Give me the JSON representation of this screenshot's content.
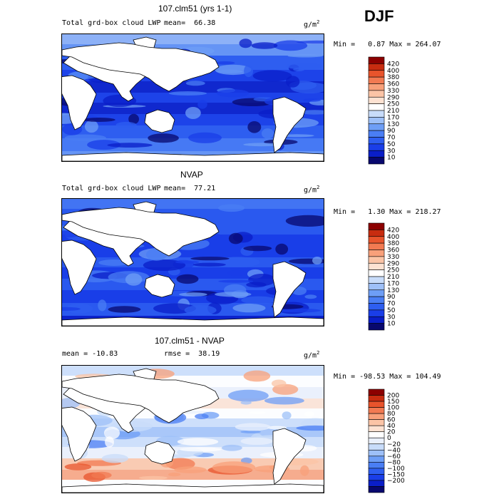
{
  "season": "DJF",
  "colors": {
    "abs_scale": [
      "#08086e",
      "#0a1ec8",
      "#1a3ee8",
      "#2e5ef0",
      "#4a7ef4",
      "#6e9ef6",
      "#9ec0f8",
      "#c8dcfa",
      "#ffffff",
      "#fde2d2",
      "#fbc4a6",
      "#f8a07a",
      "#f27a52",
      "#e8542c",
      "#c82c10",
      "#8c0000"
    ],
    "diff_scale": [
      "#08086e",
      "#0a1ec8",
      "#1a3ee8",
      "#2e5ef0",
      "#4a7ef4",
      "#6e9ef6",
      "#9ec0f8",
      "#c8dcfa",
      "#eaf0fc",
      "#ffffff",
      "#fde2d2",
      "#fbc4a6",
      "#f8a07a",
      "#f27a52",
      "#e8542c",
      "#c82c10",
      "#8c0000"
    ],
    "land": "#ffffff",
    "coast": "#000000"
  },
  "chart_data": [
    {
      "type": "heatmap",
      "title": "107.clm51 (yrs 1-1)",
      "subtitle": "Total grd-box cloud LWP",
      "stat_label": "mean=",
      "stat_value": "66.38",
      "unit_base": "g/m",
      "unit_exp": "2",
      "min_label": "Min =",
      "min_value": "0.87",
      "max_label": "Max =",
      "max_value": "264.07",
      "colorbar_levels": [
        "10",
        "30",
        "50",
        "70",
        "90",
        "130",
        "170",
        "210",
        "250",
        "290",
        "330",
        "360",
        "380",
        "400",
        "420"
      ]
    },
    {
      "type": "heatmap",
      "title": "NVAP",
      "subtitle": "Total grd-box cloud LWP",
      "stat_label": "mean=",
      "stat_value": "77.21",
      "unit_base": "g/m",
      "unit_exp": "2",
      "min_label": "Min =",
      "min_value": "1.30",
      "max_label": "Max =",
      "max_value": "218.27",
      "colorbar_levels": [
        "10",
        "30",
        "50",
        "70",
        "90",
        "130",
        "170",
        "210",
        "250",
        "290",
        "330",
        "360",
        "380",
        "400",
        "420"
      ]
    },
    {
      "type": "heatmap",
      "title": "107.clm51 - NVAP",
      "stat_label": "mean =",
      "stat_value": "-10.83",
      "rmse_label": "rmse =",
      "rmse_value": "38.19",
      "unit_base": "g/m",
      "unit_exp": "2",
      "min_label": "Min =",
      "min_value": "-98.53",
      "max_label": "Max =",
      "max_value": "104.49",
      "colorbar_levels": [
        "−200",
        "−150",
        "−100",
        "−80",
        "−60",
        "−40",
        "−20",
        "0",
        "20",
        "40",
        "60",
        "80",
        "100",
        "150",
        "200"
      ]
    }
  ]
}
